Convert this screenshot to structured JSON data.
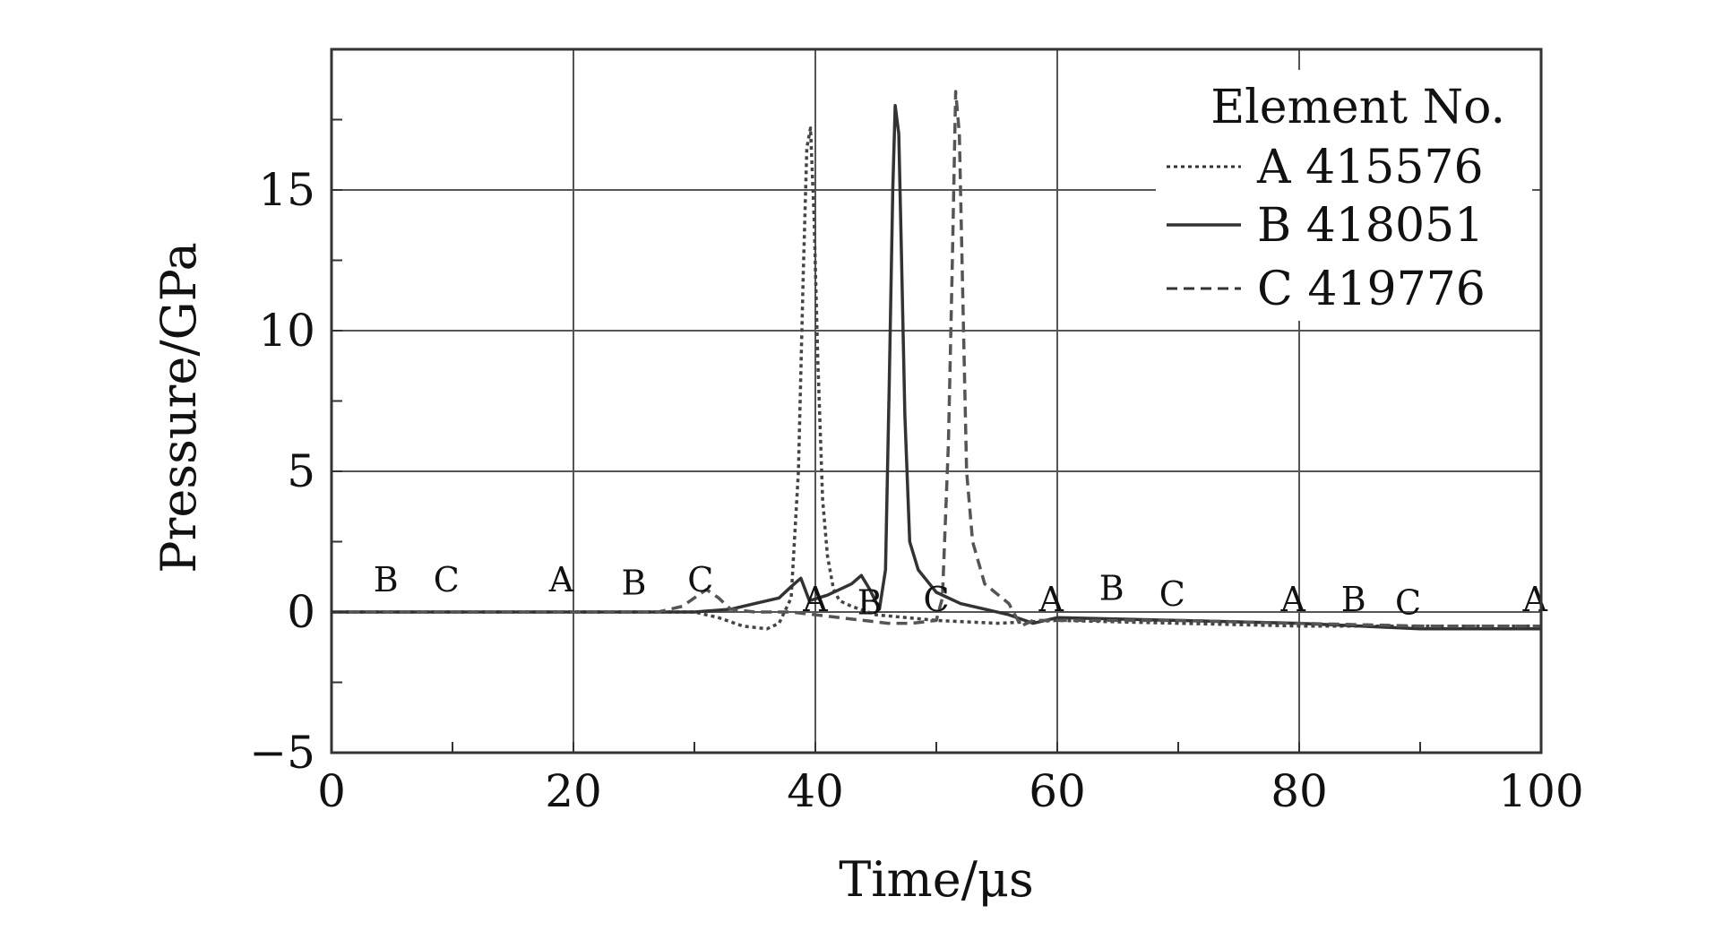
{
  "chart_data": {
    "type": "line",
    "title": "",
    "xlabel": "Time/μs",
    "ylabel": "Pressure/GPa",
    "xlim": [
      0,
      100
    ],
    "ylim": [
      -5,
      20
    ],
    "x_ticks": [
      0,
      20,
      40,
      60,
      80,
      100
    ],
    "y_ticks": [
      -5,
      0,
      5,
      10,
      15
    ],
    "y_tick_labels": [
      "−5",
      "0",
      "5",
      "10",
      "15"
    ],
    "grid": true,
    "legend": {
      "title": "Element No.",
      "placement": "top-right",
      "entries": [
        {
          "style": "dotted",
          "text": "A 415576"
        },
        {
          "style": "solid",
          "text": "B 418051"
        },
        {
          "style": "dashed",
          "text": "C 419776"
        }
      ]
    },
    "series": [
      {
        "name": "A 415576",
        "style": "dotted",
        "color": "#444444",
        "x": [
          0,
          10,
          20,
          30,
          32,
          34,
          36,
          37,
          38,
          38.6,
          39,
          39.3,
          39.6,
          39.9,
          40.2,
          40.6,
          41,
          41.5,
          42,
          43,
          45,
          50,
          55,
          60,
          70,
          80,
          90,
          100
        ],
        "y": [
          0,
          0,
          0,
          0,
          -0.2,
          -0.5,
          -0.6,
          -0.4,
          0.5,
          5,
          12,
          16.5,
          17.2,
          14,
          9,
          4,
          2,
          0.8,
          0.4,
          0.2,
          -0.1,
          -0.3,
          -0.4,
          -0.3,
          -0.4,
          -0.5,
          -0.5,
          -0.5
        ]
      },
      {
        "name": "B 418051",
        "style": "solid",
        "color": "#333333",
        "x": [
          0,
          10,
          20,
          27,
          30,
          33,
          35,
          37,
          38,
          38.8,
          39.5,
          41,
          43,
          43.8,
          44.5,
          45.3,
          45.8,
          46.1,
          46.4,
          46.6,
          46.9,
          47.1,
          47.4,
          47.8,
          48.5,
          50,
          52,
          56,
          58,
          60,
          70,
          80,
          90,
          100
        ],
        "y": [
          0,
          0,
          0,
          0,
          0,
          0.1,
          0.3,
          0.5,
          0.9,
          1.2,
          0.4,
          0.6,
          1.0,
          1.3,
          0.8,
          0.1,
          1.5,
          8,
          15,
          18,
          17,
          13,
          7,
          2.5,
          1.5,
          0.7,
          0.3,
          -0.1,
          -0.4,
          -0.2,
          -0.3,
          -0.4,
          -0.6,
          -0.6
        ]
      },
      {
        "name": "C 419776",
        "style": "dashed",
        "color": "#555555",
        "x": [
          0,
          10,
          20,
          27,
          29,
          31,
          32,
          33,
          35,
          38,
          40,
          42,
          44,
          46,
          48,
          50,
          50.5,
          51,
          51.3,
          51.6,
          51.9,
          52.2,
          52.5,
          53,
          54,
          56,
          57,
          58,
          60,
          70,
          80,
          90,
          100
        ],
        "y": [
          0,
          0,
          0,
          0,
          0.2,
          0.8,
          0.5,
          0.1,
          0,
          0,
          -0.1,
          -0.2,
          -0.3,
          -0.4,
          -0.4,
          -0.3,
          0.5,
          6,
          12,
          18.5,
          17,
          11,
          5,
          2.5,
          1.0,
          0.3,
          -0.5,
          -0.3,
          -0.3,
          -0.3,
          -0.4,
          -0.5,
          -0.5
        ]
      }
    ],
    "annotations": [
      {
        "text": "B",
        "x": 4.5,
        "y": 0.6
      },
      {
        "text": "C",
        "x": 9.5,
        "y": 0.6
      },
      {
        "text": "A",
        "x": 19,
        "y": 0.6
      },
      {
        "text": "B",
        "x": 25,
        "y": 0.5
      },
      {
        "text": "C",
        "x": 30.5,
        "y": 0.6
      },
      {
        "text": "A",
        "x": 40,
        "y": -0.1
      },
      {
        "text": "B",
        "x": 44.5,
        "y": -0.2
      },
      {
        "text": "C",
        "x": 50,
        "y": -0.1
      },
      {
        "text": "A",
        "x": 59.5,
        "y": -0.1
      },
      {
        "text": "B",
        "x": 64.5,
        "y": 0.3
      },
      {
        "text": "C",
        "x": 69.5,
        "y": 0.1
      },
      {
        "text": "A",
        "x": 79.5,
        "y": -0.1
      },
      {
        "text": "B",
        "x": 84.5,
        "y": -0.1
      },
      {
        "text": "C",
        "x": 89,
        "y": -0.2
      },
      {
        "text": "A",
        "x": 99.5,
        "y": -0.1
      }
    ]
  }
}
